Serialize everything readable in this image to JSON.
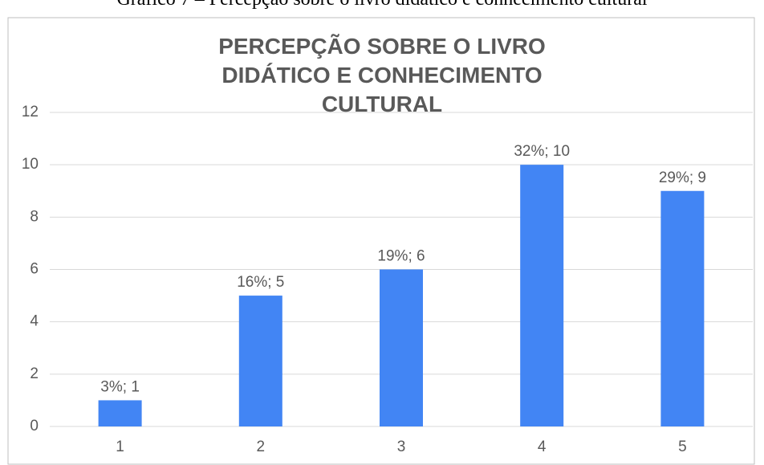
{
  "caption": "Gráfico 7 – Percepção sobre o livro didático e conhecimento cultural",
  "chart_data": {
    "type": "bar",
    "title": "PERCEPÇÃO SOBRE O LIVRO DIDÁTICO E CONHECIMENTO CULTURAL",
    "categories": [
      "1",
      "2",
      "3",
      "4",
      "5"
    ],
    "values": [
      1,
      5,
      6,
      10,
      9
    ],
    "value_labels": [
      "3%; 1",
      "16%; 5",
      "19%; 6",
      "32%; 10",
      "29%; 9"
    ],
    "color": "#4285f4",
    "ylim": [
      0,
      12
    ],
    "yticks": [
      0,
      2,
      4,
      6,
      8,
      10,
      12
    ],
    "grid": true
  }
}
